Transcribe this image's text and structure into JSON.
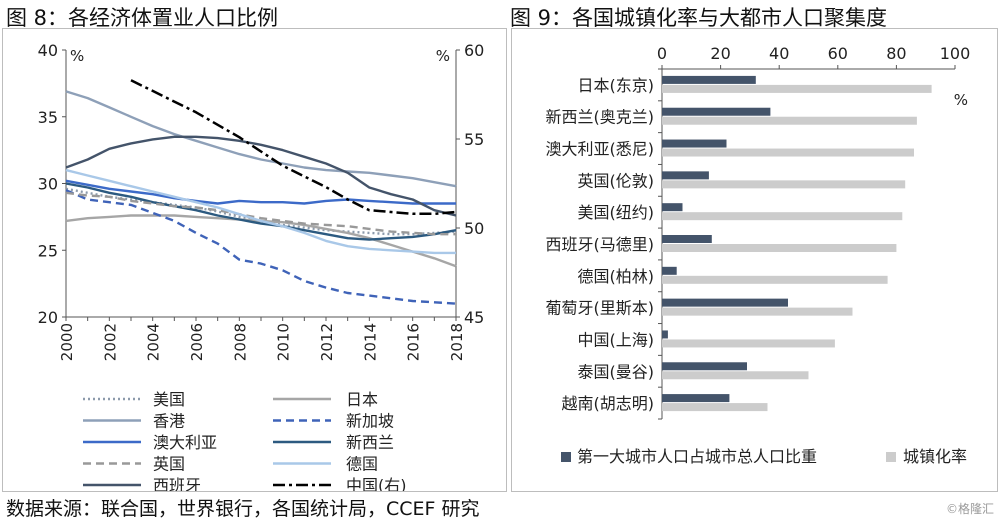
{
  "titles": {
    "fig8": "图 8：各经济体置业人口比例",
    "fig9": "图 9：各国城镇化率与大都市人口聚集度"
  },
  "footer": {
    "source": "数据来源：联合国，世界银行，各国统计局，CCEF 研究",
    "watermark": "©格隆汇"
  },
  "chart_data": [
    {
      "type": "line",
      "title": "图 8：各经济体置业人口比例",
      "x": [
        2000,
        2001,
        2002,
        2003,
        2004,
        2005,
        2006,
        2007,
        2008,
        2009,
        2010,
        2011,
        2012,
        2013,
        2014,
        2015,
        2016,
        2017,
        2018
      ],
      "x_ticks": [
        "2000",
        "2002",
        "2004",
        "2006",
        "2008",
        "2010",
        "2012",
        "2014",
        "2016",
        "2018"
      ],
      "ylim": [
        20,
        40
      ],
      "y_ticks": [
        "20",
        "25",
        "30",
        "35",
        "40"
      ],
      "y_unit_left": "%",
      "y2lim": [
        45,
        60
      ],
      "y2_ticks": [
        "45",
        "50",
        "55",
        "60"
      ],
      "y_unit_right": "%",
      "series": [
        {
          "name": "美国",
          "color": "#8c9aab",
          "dash": "dot",
          "axis": "left",
          "values": [
            29.6,
            29.3,
            29.0,
            28.8,
            28.6,
            28.4,
            28.2,
            27.9,
            27.5,
            27.2,
            26.9,
            26.7,
            26.5,
            26.4,
            26.3,
            26.2,
            26.2,
            26.3,
            26.4
          ]
        },
        {
          "name": "日本",
          "color": "#a6a6a6",
          "dash": "solid",
          "axis": "left",
          "values": [
            27.2,
            27.4,
            27.5,
            27.6,
            27.6,
            27.6,
            27.5,
            27.4,
            27.3,
            27.2,
            27.1,
            26.9,
            26.6,
            26.3,
            25.9,
            25.4,
            24.9,
            24.4,
            23.8
          ]
        },
        {
          "name": "香港",
          "color": "#8ea0b8",
          "dash": "solid",
          "axis": "left",
          "values": [
            36.9,
            36.4,
            35.7,
            35.0,
            34.3,
            33.7,
            33.2,
            32.7,
            32.2,
            31.8,
            31.5,
            31.2,
            31.0,
            30.9,
            30.8,
            30.6,
            30.4,
            30.1,
            29.8
          ]
        },
        {
          "name": "新加坡",
          "color": "#3f63b8",
          "dash": "dash",
          "axis": "left",
          "values": [
            29.5,
            28.8,
            28.6,
            28.4,
            27.8,
            27.2,
            26.3,
            25.5,
            24.3,
            24.0,
            23.5,
            22.7,
            22.2,
            21.8,
            21.6,
            21.4,
            21.2,
            21.1,
            21.0
          ]
        },
        {
          "name": "澳大利亚",
          "color": "#3c6ac8",
          "dash": "solid",
          "axis": "left",
          "values": [
            30.2,
            29.9,
            29.6,
            29.4,
            29.2,
            28.9,
            28.7,
            28.5,
            28.7,
            28.6,
            28.6,
            28.5,
            28.7,
            28.8,
            28.7,
            28.6,
            28.5,
            28.5,
            28.5
          ]
        },
        {
          "name": "新西兰",
          "color": "#2c5a80",
          "dash": "solid",
          "axis": "left",
          "values": [
            30.0,
            29.7,
            29.3,
            29.0,
            28.6,
            28.3,
            28.0,
            27.6,
            27.3,
            27.0,
            26.8,
            26.5,
            26.2,
            25.9,
            25.8,
            25.9,
            26.0,
            26.2,
            26.5
          ]
        },
        {
          "name": "英国",
          "color": "#999999",
          "dash": "dash",
          "axis": "left",
          "values": [
            29.3,
            29.1,
            29.0,
            28.7,
            28.5,
            28.3,
            28.2,
            28.0,
            27.7,
            27.4,
            27.2,
            27.0,
            26.9,
            26.8,
            26.6,
            26.4,
            26.3,
            26.2,
            26.2
          ]
        },
        {
          "name": "德国",
          "color": "#a9c8e8",
          "dash": "solid",
          "axis": "left",
          "values": [
            31.0,
            30.6,
            30.2,
            29.8,
            29.4,
            29.0,
            28.6,
            28.2,
            27.7,
            27.2,
            26.8,
            26.3,
            25.7,
            25.3,
            25.1,
            25.0,
            24.9,
            24.8,
            24.8
          ]
        },
        {
          "name": "西班牙",
          "color": "#44546a",
          "dash": "solid",
          "axis": "left",
          "values": [
            31.2,
            31.8,
            32.6,
            33.0,
            33.3,
            33.5,
            33.5,
            33.4,
            33.2,
            32.9,
            32.5,
            32.0,
            31.5,
            30.8,
            29.7,
            29.2,
            28.8,
            28.0,
            27.6
          ]
        },
        {
          "name": "中国(右)",
          "color": "#000000",
          "dash": "dashdot",
          "axis": "right",
          "x": [
            2003,
            2004,
            2005,
            2006,
            2007,
            2008,
            2009,
            2010,
            2011,
            2012,
            2013,
            2014,
            2015,
            2016,
            2017,
            2018
          ],
          "values": [
            58.3,
            57.7,
            57.1,
            56.5,
            55.8,
            55.1,
            54.3,
            53.5,
            52.9,
            52.3,
            51.6,
            51.0,
            50.9,
            50.8,
            50.8,
            50.9
          ]
        }
      ],
      "legend": {
        "placement": "bottom",
        "columns": 2
      }
    },
    {
      "type": "bar",
      "orientation": "horizontal",
      "title": "图 9：各国城镇化率与大都市人口聚集度",
      "categories": [
        "日本(东京)",
        "新西兰(奥克兰)",
        "澳大利亚(悉尼)",
        "英国(伦敦)",
        "美国(纽约)",
        "西班牙(马德里)",
        "德国(柏林)",
        "葡萄牙(里斯本)",
        "中国(上海)",
        "泰国(曼谷)",
        "越南(胡志明)"
      ],
      "xlim": [
        0,
        100
      ],
      "x_ticks": [
        "0",
        "20",
        "40",
        "60",
        "80",
        "100"
      ],
      "x_unit": "%",
      "series": [
        {
          "name": "第一大城市人口占城市总人口比重",
          "color": "#44546a",
          "values": [
            32,
            37,
            22,
            16,
            7,
            17,
            5,
            43,
            2,
            29,
            23
          ]
        },
        {
          "name": "城镇化率",
          "color": "#cccccc",
          "values": [
            92,
            87,
            86,
            83,
            82,
            80,
            77,
            65,
            59,
            50,
            36
          ]
        }
      ],
      "legend": {
        "placement": "bottom"
      }
    }
  ]
}
